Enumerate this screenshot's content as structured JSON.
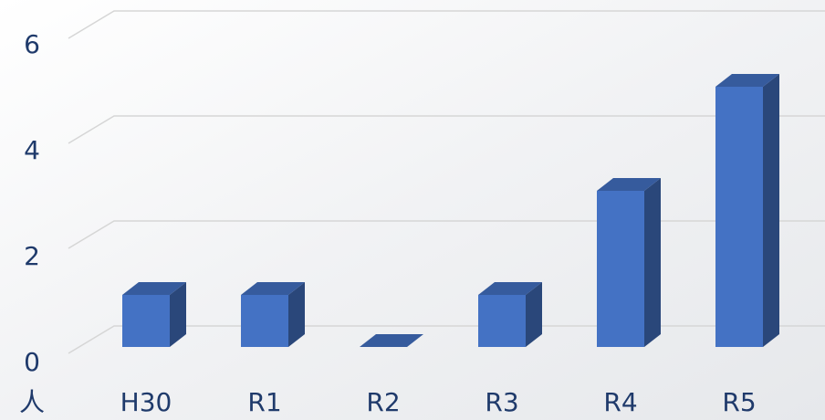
{
  "chart_data": {
    "type": "bar3d",
    "y_unit": "人",
    "categories": [
      "H30",
      "R1",
      "R2",
      "R3",
      "R4",
      "R5"
    ],
    "values": [
      1,
      1,
      0,
      1,
      3,
      5
    ],
    "color": "#4472c4",
    "ylim": [
      0,
      6
    ],
    "yticks": [
      0,
      2,
      4,
      6
    ],
    "grid": true
  }
}
